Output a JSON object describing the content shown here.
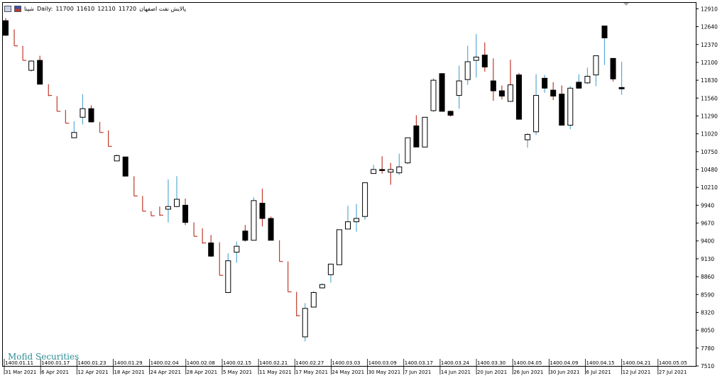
{
  "header": {
    "symbol": "شپنا",
    "timeframe": "Daily:",
    "open": "11700",
    "low": "11610",
    "high": "12110",
    "close": "11720",
    "name": "پالایش نفت اصفهان"
  },
  "watermark": "Mofid Securities",
  "colors": {
    "up": "#5aa9d6",
    "down": "#c0392b",
    "border": "#000000",
    "bull_body": "#ffffff",
    "bear_body": "#000000"
  },
  "chart_data": {
    "type": "candlestick",
    "title": "",
    "ylim": [
      7510,
      13000
    ],
    "y_ticks": [
      7510,
      7780,
      8050,
      8320,
      8590,
      8860,
      9130,
      9400,
      9670,
      9940,
      10210,
      10480,
      10750,
      11020,
      11290,
      11560,
      11830,
      12100,
      12370,
      12640,
      12910
    ],
    "y_tick_labels": [
      "7510",
      "7780",
      "8050",
      "8320",
      "8590",
      "8860",
      "9130",
      "9400",
      "9670",
      "9940",
      "10210",
      "10480",
      "10750",
      "11020",
      "11290",
      "11560",
      "11830",
      "12100",
      "12370",
      "12640",
      "12910"
    ],
    "x_labels_top": [
      "1400.01.11",
      "1400.01.17",
      "1400.01.23",
      "1400.01.29",
      "1400.02.04",
      "1400.02.08",
      "1400.02.15",
      "1400.02.21",
      "1400.02.27",
      "1400.03.03",
      "1400.03.09",
      "1400.03.17",
      "1400.03.24",
      "1400.03.30",
      "1400.04.05",
      "1400.04.09",
      "1400.04.15",
      "1400.04.21",
      "1400.05.05"
    ],
    "x_labels_bottom": [
      "31 Mar 2021",
      "6 Apr 2021",
      "12 Apr 2021",
      "18 Apr 2021",
      "24 Apr 2021",
      "28 Apr 2021",
      "5 May 2021",
      "11 May 2021",
      "17 May 2021",
      "24 May 2021",
      "30 May 2021",
      "7 Jun 2021",
      "14 Jun 2021",
      "20 Jun 2021",
      "26 Jun 2021",
      "30 Jun 2021",
      "6 Jul 2021",
      "12 Jul 2021",
      "27 Jul 2021"
    ],
    "candles": [
      {
        "o": 12730,
        "h": 12770,
        "l": 12500,
        "c": 12510,
        "k": "bear"
      },
      {
        "o": 12510,
        "h": 12600,
        "l": 12350,
        "c": 12350,
        "k": "tick"
      },
      {
        "o": 12350,
        "h": 12350,
        "l": 12130,
        "c": 12130,
        "k": "tick"
      },
      {
        "o": 11980,
        "h": 12130,
        "l": 11960,
        "c": 12120,
        "k": "bull"
      },
      {
        "o": 12130,
        "h": 12200,
        "l": 11770,
        "c": 11770,
        "k": "bear"
      },
      {
        "o": 11770,
        "h": 11770,
        "l": 11590,
        "c": 11600,
        "k": "tick"
      },
      {
        "o": 11590,
        "h": 11590,
        "l": 11360,
        "c": 11360,
        "k": "tick"
      },
      {
        "o": 11360,
        "h": 11380,
        "l": 11180,
        "c": 11180,
        "k": "tick"
      },
      {
        "o": 10960,
        "h": 11210,
        "l": 10960,
        "c": 11040,
        "k": "bull"
      },
      {
        "o": 11270,
        "h": 11620,
        "l": 11160,
        "c": 11400,
        "k": "bull"
      },
      {
        "o": 11400,
        "h": 11450,
        "l": 11190,
        "c": 11200,
        "k": "bear"
      },
      {
        "o": 11200,
        "h": 11200,
        "l": 11040,
        "c": 11040,
        "k": "tick"
      },
      {
        "o": 11040,
        "h": 11070,
        "l": 10830,
        "c": 10830,
        "k": "tick"
      },
      {
        "o": 10610,
        "h": 10710,
        "l": 10610,
        "c": 10690,
        "k": "bull"
      },
      {
        "o": 10670,
        "h": 10670,
        "l": 10380,
        "c": 10380,
        "k": "bear"
      },
      {
        "o": 10380,
        "h": 10380,
        "l": 10080,
        "c": 10080,
        "k": "tick"
      },
      {
        "o": 10080,
        "h": 10080,
        "l": 9850,
        "c": 9850,
        "k": "tick"
      },
      {
        "o": 9850,
        "h": 9850,
        "l": 9780,
        "c": 9780,
        "k": "tick"
      },
      {
        "o": 9780,
        "h": 9920,
        "l": 9780,
        "c": 9790,
        "k": "tick"
      },
      {
        "o": 9880,
        "h": 10330,
        "l": 9680,
        "c": 9920,
        "k": "bull"
      },
      {
        "o": 9920,
        "h": 10380,
        "l": 9910,
        "c": 10030,
        "k": "bull"
      },
      {
        "o": 9940,
        "h": 10040,
        "l": 9640,
        "c": 9680,
        "k": "bear"
      },
      {
        "o": 9680,
        "h": 9680,
        "l": 9470,
        "c": 9470,
        "k": "tick"
      },
      {
        "o": 9470,
        "h": 9590,
        "l": 9360,
        "c": 9370,
        "k": "tick"
      },
      {
        "o": 9370,
        "h": 9490,
        "l": 9160,
        "c": 9170,
        "k": "bear"
      },
      {
        "o": 9170,
        "h": 9380,
        "l": 8880,
        "c": 8880,
        "k": "tick"
      },
      {
        "o": 8620,
        "h": 9210,
        "l": 8620,
        "c": 9100,
        "k": "bull"
      },
      {
        "o": 9230,
        "h": 9390,
        "l": 9070,
        "c": 9320,
        "k": "bull"
      },
      {
        "o": 9550,
        "h": 9640,
        "l": 9390,
        "c": 9410,
        "k": "bear"
      },
      {
        "o": 9410,
        "h": 10060,
        "l": 9410,
        "c": 10010,
        "k": "bull"
      },
      {
        "o": 9970,
        "h": 10190,
        "l": 9620,
        "c": 9740,
        "k": "bear"
      },
      {
        "o": 9740,
        "h": 9770,
        "l": 9410,
        "c": 9410,
        "k": "bear"
      },
      {
        "o": 9410,
        "h": 9410,
        "l": 9090,
        "c": 9090,
        "k": "tick"
      },
      {
        "o": 9090,
        "h": 9090,
        "l": 8630,
        "c": 8630,
        "k": "tick"
      },
      {
        "o": 8630,
        "h": 8630,
        "l": 8260,
        "c": 8270,
        "k": "tick"
      },
      {
        "o": 7950,
        "h": 8460,
        "l": 7880,
        "c": 8380,
        "k": "bull"
      },
      {
        "o": 8400,
        "h": 8640,
        "l": 8400,
        "c": 8620,
        "k": "bull"
      },
      {
        "o": 8690,
        "h": 8760,
        "l": 8680,
        "c": 8740,
        "k": "bull"
      },
      {
        "o": 8890,
        "h": 9050,
        "l": 8770,
        "c": 9050,
        "k": "bull"
      },
      {
        "o": 9040,
        "h": 9570,
        "l": 9040,
        "c": 9570,
        "k": "bull"
      },
      {
        "o": 9580,
        "h": 9930,
        "l": 9580,
        "c": 9690,
        "k": "bull"
      },
      {
        "o": 9690,
        "h": 9960,
        "l": 9540,
        "c": 9740,
        "k": "bull"
      },
      {
        "o": 9770,
        "h": 10280,
        "l": 9720,
        "c": 10280,
        "k": "bull"
      },
      {
        "o": 10420,
        "h": 10550,
        "l": 10420,
        "c": 10480,
        "k": "bull"
      },
      {
        "o": 10480,
        "h": 10680,
        "l": 10420,
        "c": 10470,
        "k": "bear"
      },
      {
        "o": 10480,
        "h": 10580,
        "l": 10250,
        "c": 10440,
        "k": "bull"
      },
      {
        "o": 10430,
        "h": 10720,
        "l": 10400,
        "c": 10520,
        "k": "bull"
      },
      {
        "o": 10580,
        "h": 10960,
        "l": 10560,
        "c": 10960,
        "k": "bull"
      },
      {
        "o": 11140,
        "h": 11300,
        "l": 10820,
        "c": 10820,
        "k": "bear"
      },
      {
        "o": 10820,
        "h": 11270,
        "l": 10820,
        "c": 11270,
        "k": "bull"
      },
      {
        "o": 11370,
        "h": 11860,
        "l": 11350,
        "c": 11830,
        "k": "bull"
      },
      {
        "o": 11930,
        "h": 11930,
        "l": 11360,
        "c": 11360,
        "k": "bear"
      },
      {
        "o": 11360,
        "h": 11370,
        "l": 11280,
        "c": 11300,
        "k": "bear"
      },
      {
        "o": 11600,
        "h": 12050,
        "l": 11400,
        "c": 11820,
        "k": "bull"
      },
      {
        "o": 11840,
        "h": 12350,
        "l": 11760,
        "c": 12110,
        "k": "bull"
      },
      {
        "o": 12130,
        "h": 12530,
        "l": 11870,
        "c": 12180,
        "k": "bull"
      },
      {
        "o": 12210,
        "h": 12400,
        "l": 11960,
        "c": 12030,
        "k": "bear"
      },
      {
        "o": 11820,
        "h": 12160,
        "l": 11520,
        "c": 11670,
        "k": "bear"
      },
      {
        "o": 11670,
        "h": 11750,
        "l": 11540,
        "c": 11590,
        "k": "bear"
      },
      {
        "o": 11760,
        "h": 12140,
        "l": 11510,
        "c": 11510,
        "k": "bull"
      },
      {
        "o": 11910,
        "h": 11940,
        "l": 11240,
        "c": 11240,
        "k": "bear"
      },
      {
        "o": 10930,
        "h": 11030,
        "l": 10810,
        "c": 11010,
        "k": "bull"
      },
      {
        "o": 11050,
        "h": 11920,
        "l": 11000,
        "c": 11600,
        "k": "bull"
      },
      {
        "o": 11710,
        "h": 11910,
        "l": 11640,
        "c": 11860,
        "k": "bear"
      },
      {
        "o": 11680,
        "h": 11800,
        "l": 11530,
        "c": 11590,
        "k": "bear"
      },
      {
        "o": 11620,
        "h": 11750,
        "l": 11150,
        "c": 11150,
        "k": "bear"
      },
      {
        "o": 11150,
        "h": 11740,
        "l": 11090,
        "c": 11710,
        "k": "bull"
      },
      {
        "o": 11710,
        "h": 11920,
        "l": 11700,
        "c": 11800,
        "k": "bear"
      },
      {
        "o": 11790,
        "h": 12020,
        "l": 11770,
        "c": 11890,
        "k": "bull"
      },
      {
        "o": 11910,
        "h": 12190,
        "l": 11740,
        "c": 12200,
        "k": "bull"
      },
      {
        "o": 12470,
        "h": 12650,
        "l": 12060,
        "c": 12650,
        "k": "bear"
      },
      {
        "o": 12160,
        "h": 12160,
        "l": 11810,
        "c": 11850,
        "k": "bear"
      },
      {
        "o": 11700,
        "h": 12110,
        "l": 11610,
        "c": 11720,
        "k": "bear"
      }
    ]
  }
}
